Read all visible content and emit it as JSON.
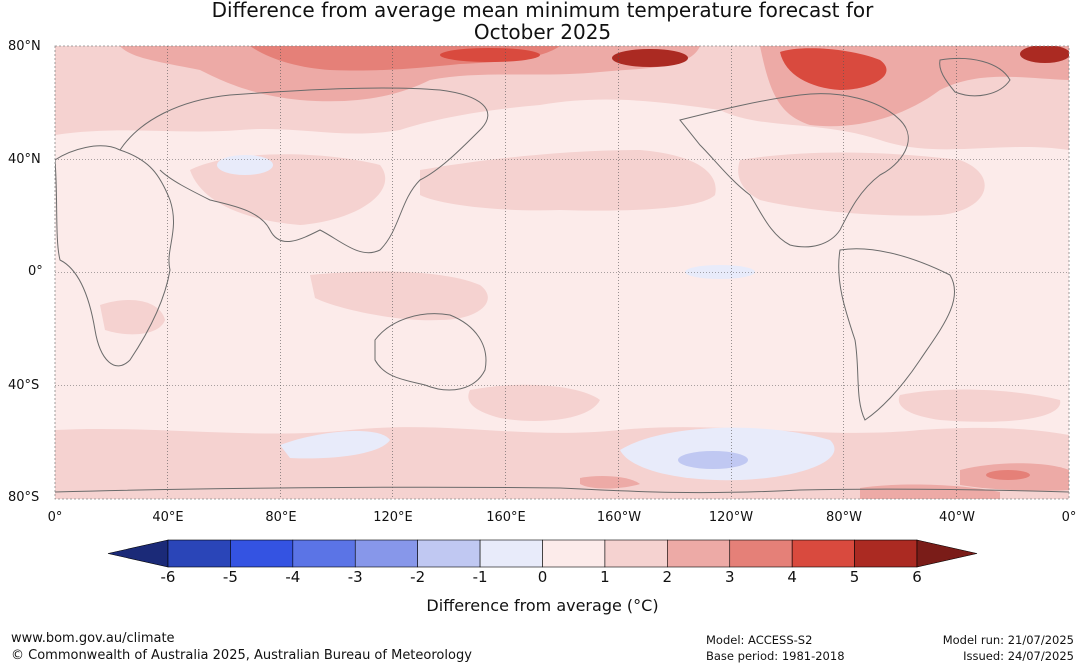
{
  "title_line1": "Difference from average mean minimum temperature forecast for",
  "title_line2": "October 2025",
  "lat_labels": [
    "80°N",
    "40°N",
    "0°",
    "40°S",
    "80°S"
  ],
  "lon_labels": [
    "0°",
    "40°E",
    "80°E",
    "120°E",
    "160°E",
    "160°W",
    "120°W",
    "80°W",
    "40°W",
    "0°"
  ],
  "colorbar": {
    "ticks": [
      "-6",
      "-5",
      "-4",
      "-3",
      "-2",
      "-1",
      "0",
      "1",
      "2",
      "3",
      "4",
      "5",
      "6"
    ],
    "colors": [
      "#1b2a78",
      "#2a45b8",
      "#3453e2",
      "#5b74e6",
      "#8797ea",
      "#c0c8f2",
      "#e8ebfa",
      "#fcebea",
      "#f5d2d0",
      "#edaaa6",
      "#e58078",
      "#d94a3e",
      "#ab2a22",
      "#7a1c18"
    ],
    "label": "Difference from average (°C)"
  },
  "footer": {
    "website": "www.bom.gov.au/climate",
    "copyright": "© Commonwealth of Australia 2025, Australian Bureau of Meteorology",
    "model": "Model: ACCESS-S2",
    "base_period": "Base period: 1981-2018",
    "model_run": "Model run: 21/07/2025",
    "issued": "Issued: 24/07/2025"
  }
}
